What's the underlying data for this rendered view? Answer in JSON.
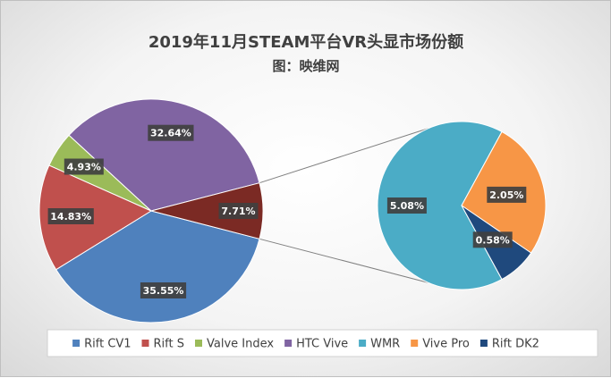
{
  "chart_data": {
    "type": "pie",
    "subtype": "pie-of-pie",
    "title": "2019年11月STEAM平台VR头显市场份额",
    "subtitle": "图：映维网",
    "categories": [
      "Rift CV1",
      "Rift S",
      "Valve Index",
      "HTC Vive",
      "WMR",
      "Vive Pro",
      "Rift DK2"
    ],
    "values": [
      35.55,
      14.83,
      4.93,
      32.64,
      5.08,
      2.05,
      0.58
    ],
    "labels": [
      "35.55%",
      "14.83%",
      "4.93%",
      "32.64%",
      "5.08%",
      "2.05%",
      "0.58%"
    ],
    "colors": [
      "#4f81bd",
      "#c0504d",
      "#9bbb59",
      "#8064a2",
      "#4bacc6",
      "#f79646",
      "#1f497d"
    ],
    "main_pie": {
      "slices": [
        0,
        1,
        2,
        3
      ],
      "other": {
        "value": 7.71,
        "label": "7.71%",
        "color": "#7b2a24"
      }
    },
    "secondary_pie": {
      "slices": [
        4,
        5,
        6
      ]
    },
    "legend": {
      "position": "bottom",
      "entries": [
        "Rift CV1",
        "Rift S",
        "Valve Index",
        "HTC Vive",
        "WMR",
        "Vive Pro",
        "Rift DK2"
      ]
    }
  }
}
